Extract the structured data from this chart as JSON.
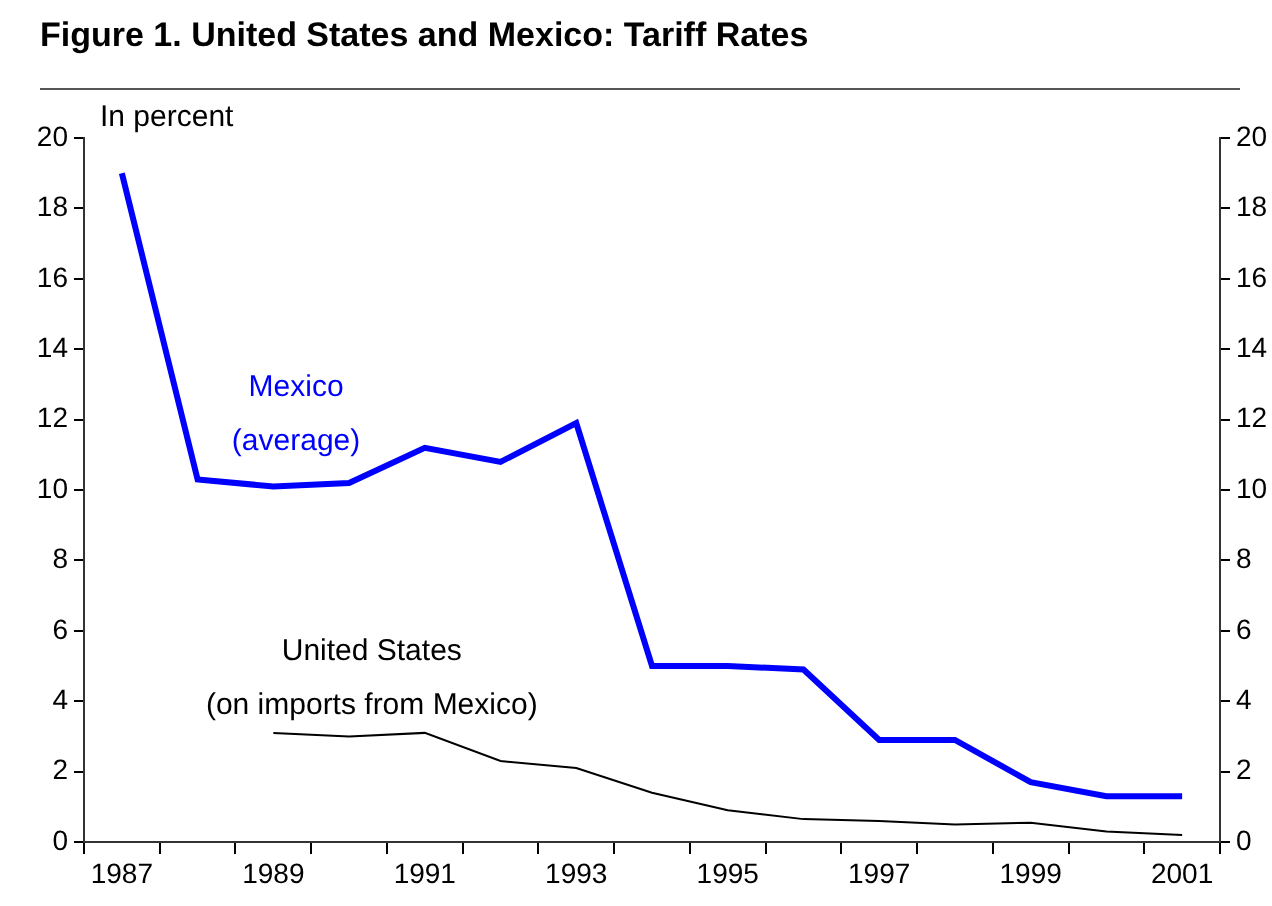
{
  "chart_data": {
    "type": "line",
    "title": "Figure 1. United States and Mexico: Tariff Rates",
    "ylabel": "In percent",
    "categories": [
      "1987",
      null,
      "1989",
      null,
      "1991",
      null,
      "1993",
      null,
      "1995",
      null,
      "1997",
      null,
      "1999",
      null,
      "2001"
    ],
    "series": [
      {
        "name": "Mexico (average)",
        "color": "#0000ff",
        "values": [
          19.0,
          10.3,
          10.1,
          10.2,
          11.2,
          10.8,
          11.9,
          5.0,
          5.0,
          4.9,
          2.9,
          2.9,
          1.7,
          1.3,
          1.3
        ]
      },
      {
        "name": "United States (on imports from Mexico)",
        "color": "#000000",
        "values": [
          null,
          null,
          3.1,
          3.0,
          3.1,
          2.3,
          2.1,
          1.4,
          0.9,
          0.65,
          0.6,
          0.5,
          0.55,
          0.3,
          0.2
        ]
      }
    ],
    "ylim": [
      0,
      20
    ],
    "yticks": [
      0,
      2,
      4,
      6,
      8,
      10,
      12,
      14,
      16,
      18,
      20
    ],
    "y2lim": [
      0,
      20
    ],
    "y2ticks": [
      0,
      2,
      4,
      6,
      8,
      10,
      12,
      14,
      16,
      18,
      20
    ],
    "grid": false,
    "legend": false,
    "marker": "none",
    "line_style": "solid"
  }
}
